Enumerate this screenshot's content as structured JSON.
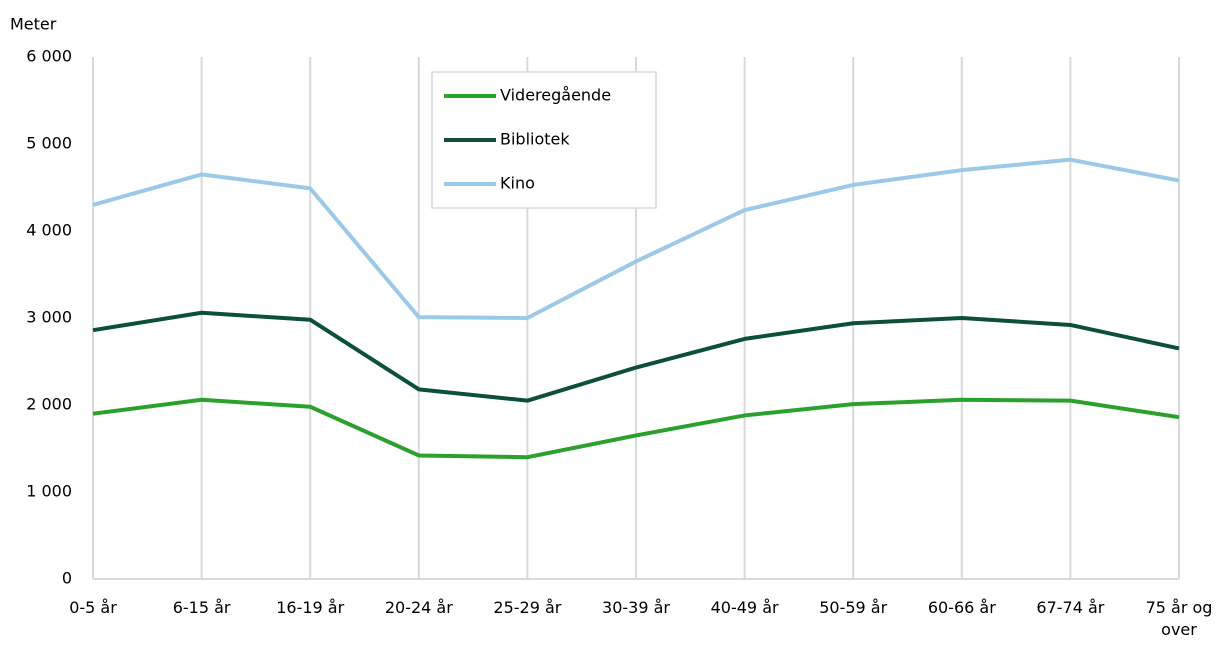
{
  "chart_data": {
    "type": "line",
    "y_axis_label": "Meter",
    "categories": [
      "0-5 år",
      "6-15 år",
      "16-19 år",
      "20-24 år",
      "25-29 år",
      "30-39 år",
      "40-49 år",
      "50-59 år",
      "60-66 år",
      "67-74 år",
      "75 år og over"
    ],
    "series": [
      {
        "name": "Videregående",
        "color": "#2ca02c",
        "values": [
          1900,
          2060,
          1980,
          1420,
          1400,
          1650,
          1880,
          2010,
          2060,
          2050,
          1860
        ]
      },
      {
        "name": "Bibliotek",
        "color": "#0b4f3c",
        "values": [
          2860,
          3060,
          2980,
          2180,
          2050,
          2430,
          2760,
          2940,
          3000,
          2920,
          2650
        ]
      },
      {
        "name": "Kino",
        "color": "#9cc9e8",
        "values": [
          4300,
          4650,
          4490,
          3010,
          3000,
          3650,
          4240,
          4530,
          4700,
          4820,
          4580
        ]
      }
    ],
    "ylim": [
      0,
      6000
    ],
    "yticks": [
      0,
      {
        "value": 1000,
        "label": "1 000"
      },
      {
        "value": 2000,
        "label": "2 000"
      },
      {
        "value": 3000,
        "label": "3 000"
      },
      {
        "value": 4000,
        "label": "4 000"
      },
      {
        "value": 5000,
        "label": "5 000"
      },
      {
        "value": 6000,
        "label": "6 000"
      }
    ],
    "grid": "x",
    "legend": "top"
  }
}
